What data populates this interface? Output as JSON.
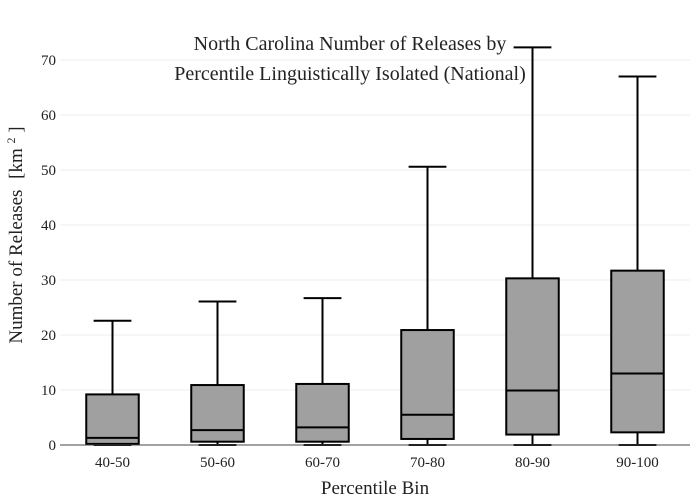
{
  "chart_data": {
    "type": "box",
    "title_lines": [
      "North Carolina Number of Releases by",
      "Percentile Linguistically Isolated (National)"
    ],
    "xlabel": "Percentile Bin",
    "ylabel": "Number of Releases",
    "ylabel_unit": "[km",
    "ylabel_unit_sup": "2",
    "ylabel_unit_close": "]",
    "ylim": [
      0,
      72
    ],
    "yticks": [
      0,
      10,
      20,
      30,
      40,
      50,
      60,
      70
    ],
    "grid": true,
    "box_color": "#a0a0a0",
    "categories": [
      "40-50",
      "50-60",
      "60-70",
      "70-80",
      "80-90",
      "90-100"
    ],
    "boxes": [
      {
        "category": "40-50",
        "min": 0,
        "q1": 0.2,
        "median": 1.3,
        "q3": 9.2,
        "max": 22.6
      },
      {
        "category": "50-60",
        "min": 0,
        "q1": 0.6,
        "median": 2.7,
        "q3": 10.9,
        "max": 26.1
      },
      {
        "category": "60-70",
        "min": 0,
        "q1": 0.6,
        "median": 3.2,
        "q3": 11.1,
        "max": 26.7
      },
      {
        "category": "70-80",
        "min": 0,
        "q1": 1.1,
        "median": 5.5,
        "q3": 20.9,
        "max": 50.6
      },
      {
        "category": "80-90",
        "min": 0,
        "q1": 1.9,
        "median": 9.9,
        "q3": 30.3,
        "max": 72.3
      },
      {
        "category": "90-100",
        "min": 0,
        "q1": 2.3,
        "median": 13.0,
        "q3": 31.7,
        "max": 67.0
      }
    ]
  }
}
